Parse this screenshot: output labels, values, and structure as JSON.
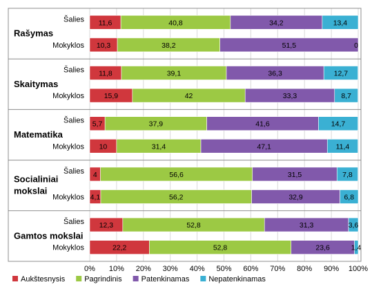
{
  "chart_data": {
    "type": "bar",
    "orientation": "horizontal",
    "stacked": "percent",
    "xlim": [
      0,
      100
    ],
    "x_ticks": [
      "0%",
      "10%",
      "20%",
      "30%",
      "40%",
      "50%",
      "60%",
      "70%",
      "80%",
      "90%",
      "100%"
    ],
    "grid": true,
    "legend_position": "bottom",
    "series": [
      {
        "name": "Aukštesnysis",
        "color": "#d0373d"
      },
      {
        "name": "Pagrindinis",
        "color": "#9cc944"
      },
      {
        "name": "Patenkinamas",
        "color": "#8159ab"
      },
      {
        "name": "Nepatenkinamas",
        "color": "#3ab0d3"
      }
    ],
    "groups": [
      {
        "name": [
          "Rašymas"
        ],
        "rows": [
          {
            "label": "Šalies",
            "values": [
              11.6,
              40.8,
              34.2,
              13.4
            ],
            "labels": [
              "11,6",
              "40,8",
              "34,2",
              "13,4"
            ]
          },
          {
            "label": "Mokyklos",
            "values": [
              10.3,
              38.2,
              51.5,
              0
            ],
            "labels": [
              "10,3",
              "38,2",
              "51,5",
              "0"
            ]
          }
        ]
      },
      {
        "name": [
          "Skaitymas"
        ],
        "rows": [
          {
            "label": "Šalies",
            "values": [
              11.8,
              39.1,
              36.3,
              12.7
            ],
            "labels": [
              "11,8",
              "39,1",
              "36,3",
              "12,7"
            ]
          },
          {
            "label": "Mokyklos",
            "values": [
              15.9,
              42,
              33.3,
              8.7
            ],
            "labels": [
              "15,9",
              "42",
              "33,3",
              "8,7"
            ]
          }
        ]
      },
      {
        "name": [
          "Matematika"
        ],
        "rows": [
          {
            "label": "Šalies",
            "values": [
              5.7,
              37.9,
              41.6,
              14.7
            ],
            "labels": [
              "5,7",
              "37,9",
              "41,6",
              "14,7"
            ]
          },
          {
            "label": "Mokyklos",
            "values": [
              10,
              31.4,
              47.1,
              11.4
            ],
            "labels": [
              "10",
              "31,4",
              "47,1",
              "11,4"
            ]
          }
        ]
      },
      {
        "name": [
          "Socialiniai",
          "mokslai"
        ],
        "rows": [
          {
            "label": "Šalies",
            "values": [
              4,
              56.6,
              31.5,
              7.8
            ],
            "labels": [
              "4",
              "56,6",
              "31,5",
              "7,8"
            ]
          },
          {
            "label": "Mokyklos",
            "values": [
              4.1,
              56.2,
              32.9,
              6.8
            ],
            "labels": [
              "4,1",
              "56,2",
              "32,9",
              "6,8"
            ]
          }
        ]
      },
      {
        "name": [
          "Gamtos mokslai"
        ],
        "rows": [
          {
            "label": "Šalies",
            "values": [
              12.3,
              52.8,
              31.3,
              3.6
            ],
            "labels": [
              "12,3",
              "52,8",
              "31,3",
              "3,6"
            ]
          },
          {
            "label": "Mokyklos",
            "values": [
              22.2,
              52.8,
              23.6,
              1.4
            ],
            "labels": [
              "22,2",
              "52,8",
              "23,6",
              "1,4"
            ]
          }
        ]
      }
    ]
  }
}
